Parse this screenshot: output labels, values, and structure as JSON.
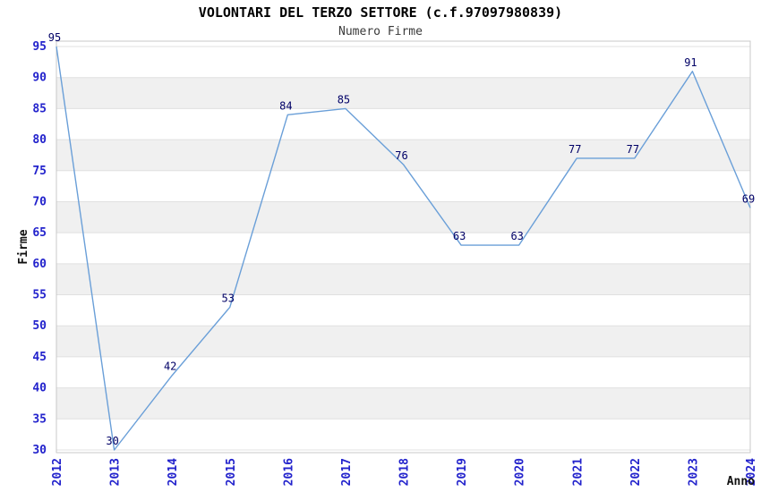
{
  "chart_data": {
    "type": "line",
    "title": "VOLONTARI DEL TERZO SETTORE (c.f.97097980839)",
    "subtitle": "Numero Firme",
    "xlabel": "Anno",
    "ylabel": "Firme",
    "categories": [
      "2012",
      "2013",
      "2014",
      "2015",
      "2016",
      "2017",
      "2018",
      "2019",
      "2020",
      "2021",
      "2022",
      "2023",
      "2024"
    ],
    "values": [
      95,
      30,
      42,
      53,
      84,
      85,
      76,
      63,
      63,
      77,
      77,
      91,
      69
    ],
    "ylim": [
      30,
      95
    ],
    "ytick_step": 5,
    "yticks": [
      30,
      35,
      40,
      45,
      50,
      55,
      60,
      65,
      70,
      75,
      80,
      85,
      90,
      95
    ],
    "grid": "horizontal-bands-alternating",
    "legend_position": "none",
    "point_labels_visible": true,
    "colors": {
      "line": "#6a9fd8",
      "tick_label": "#2222cc",
      "value_label": "#000066",
      "band_white": "#ffffff",
      "band_gray": "#f0f0f0",
      "gridline": "#e0e0e0",
      "plot_border": "#c9c9c9",
      "title": "#000000",
      "subtitle": "#3a3a3a",
      "axis_title": "#111111",
      "background": "#ffffff"
    }
  }
}
